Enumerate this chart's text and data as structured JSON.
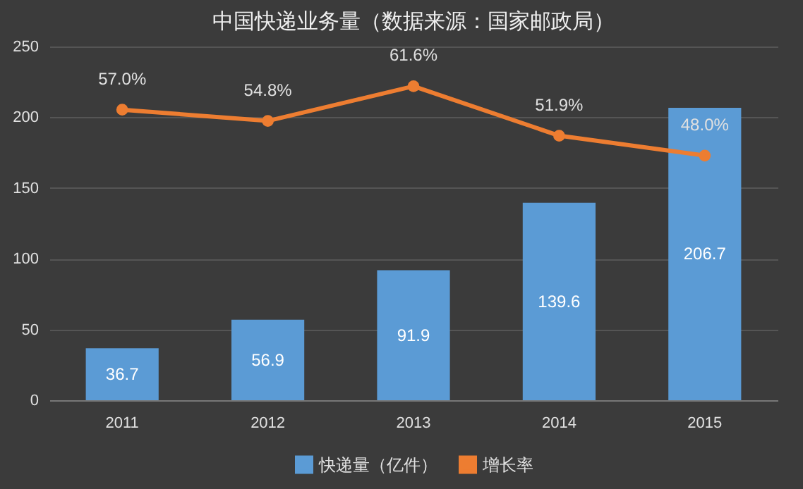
{
  "chart_data": {
    "type": "bar",
    "title": "中国快递业务量（数据来源：国家邮政局）",
    "categories": [
      "2011",
      "2012",
      "2013",
      "2014",
      "2015"
    ],
    "series": [
      {
        "name": "快递量（亿件）",
        "color": "#5b9bd5",
        "values": [
          36.7,
          56.9,
          91.9,
          139.6,
          206.7
        ],
        "value_labels": [
          "36.7",
          "56.9",
          "91.9",
          "139.6",
          "206.7"
        ]
      },
      {
        "name": "增长率",
        "type": "line",
        "axis": "y2",
        "color": "#ed7d31",
        "values": [
          57.0,
          54.8,
          61.6,
          51.9,
          48.0
        ],
        "value_labels": [
          "57.0%",
          "54.8%",
          "61.6%",
          "51.9%",
          "48.0%"
        ]
      }
    ],
    "ylim": [
      0,
      250
    ],
    "yticks": [
      0,
      50,
      100,
      150,
      200,
      250
    ],
    "y2lim": [
      0,
      69.4
    ],
    "grid": "y",
    "legend": "bottom",
    "marker": "circle"
  }
}
